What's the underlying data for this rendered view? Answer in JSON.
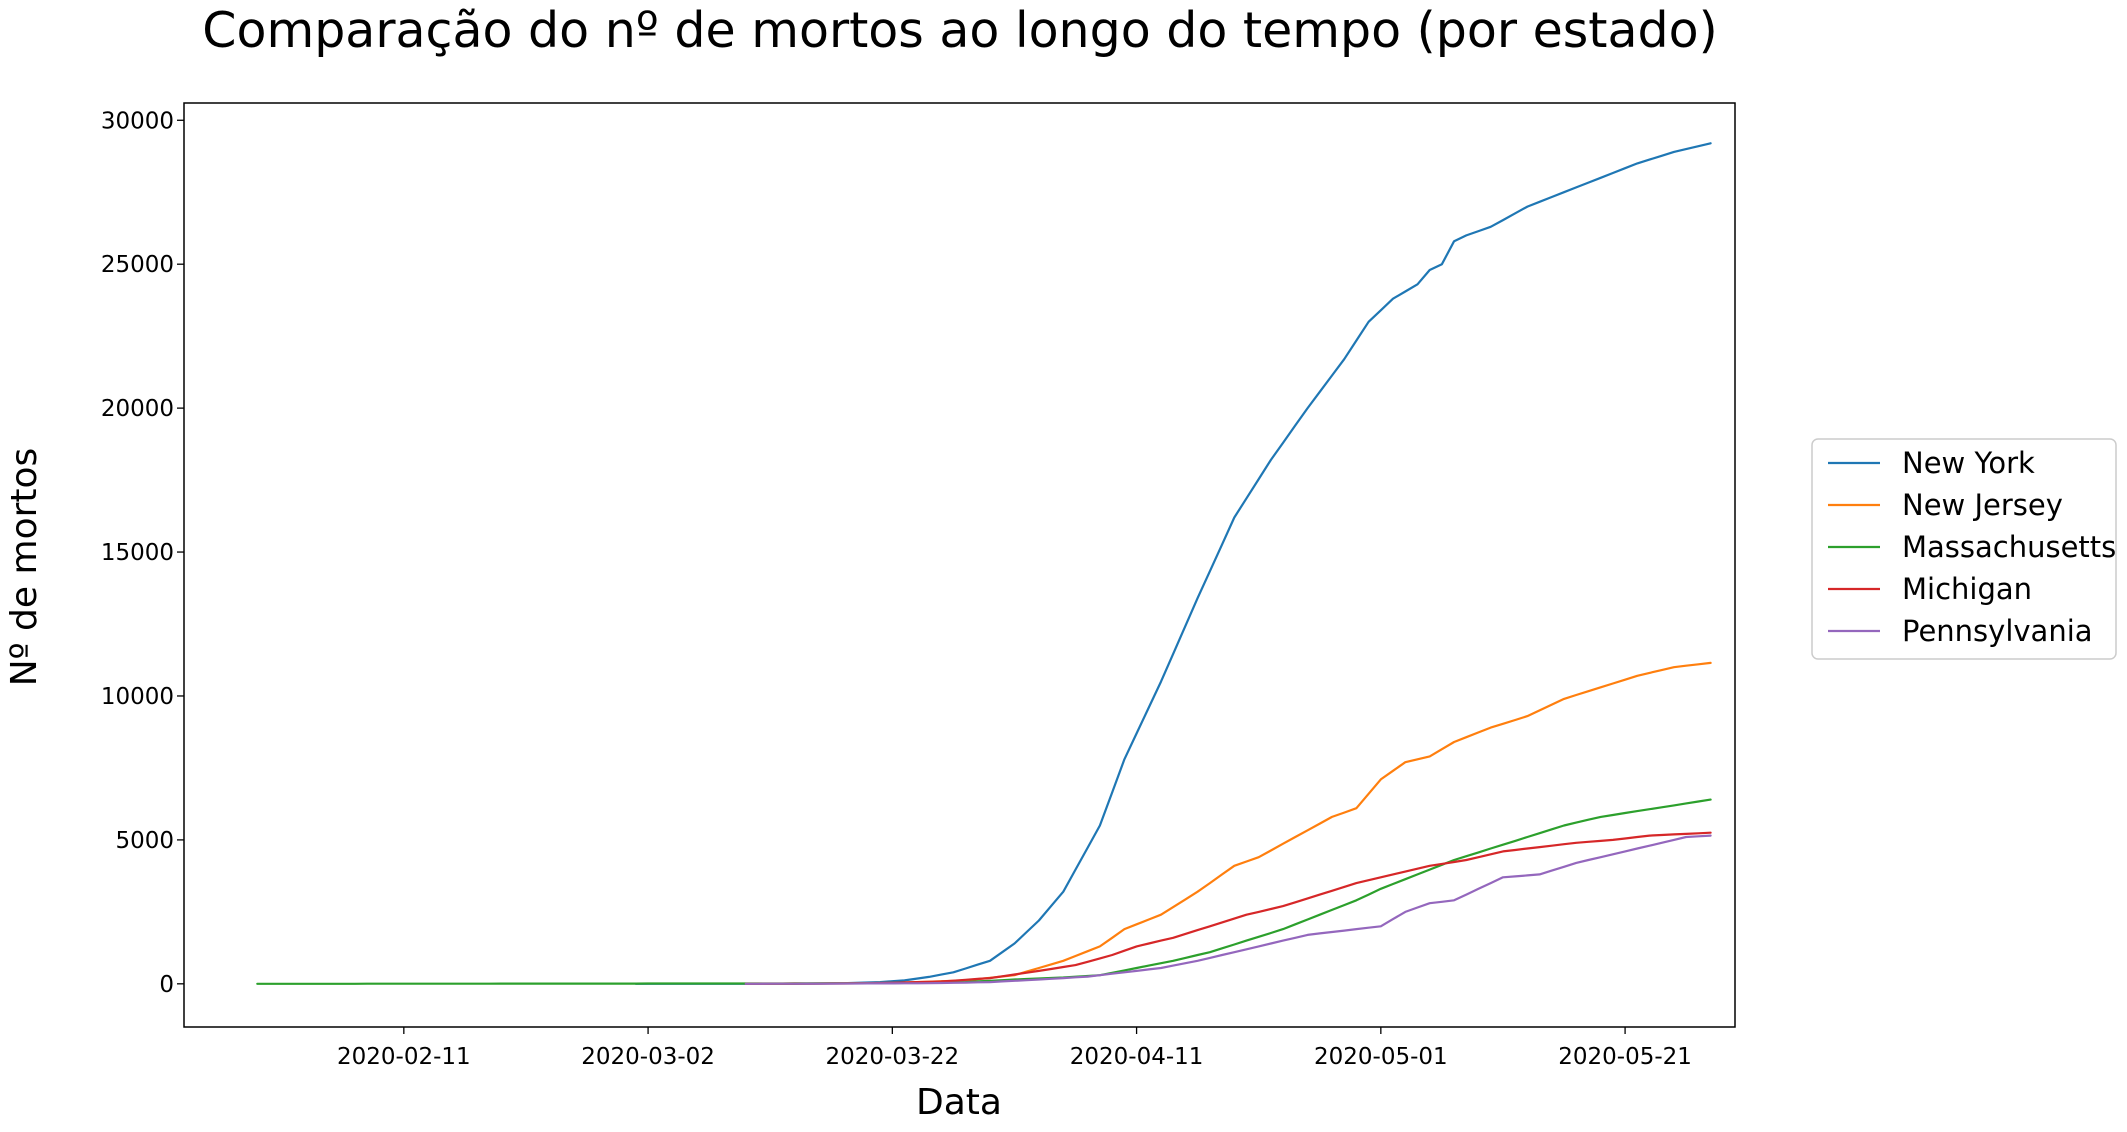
{
  "chart_data": {
    "type": "line",
    "title": "Comparação do nº de mortos ao longo do tempo (por estado)",
    "xlabel": "Data",
    "ylabel": "Nº de mortos",
    "x_type": "date",
    "xlim": [
      "2020-01-24",
      "2020-05-30"
    ],
    "ylim": [
      -1500,
      30600
    ],
    "x_ticks": [
      "2020-02-11",
      "2020-03-02",
      "2020-03-22",
      "2020-04-11",
      "2020-05-01",
      "2020-05-21"
    ],
    "y_ticks": [
      0,
      5000,
      10000,
      15000,
      20000,
      25000,
      30000
    ],
    "grid": false,
    "legend_position": "outside-right",
    "series": [
      {
        "name": "New York",
        "color": "#1f77b4",
        "points": [
          [
            "2020-03-01",
            0
          ],
          [
            "2020-03-14",
            2
          ],
          [
            "2020-03-18",
            20
          ],
          [
            "2020-03-21",
            60
          ],
          [
            "2020-03-23",
            120
          ],
          [
            "2020-03-25",
            240
          ],
          [
            "2020-03-27",
            400
          ],
          [
            "2020-03-30",
            800
          ],
          [
            "2020-04-01",
            1400
          ],
          [
            "2020-04-03",
            2200
          ],
          [
            "2020-04-05",
            3200
          ],
          [
            "2020-04-08",
            5500
          ],
          [
            "2020-04-10",
            7800
          ],
          [
            "2020-04-13",
            10500
          ],
          [
            "2020-04-16",
            13400
          ],
          [
            "2020-04-19",
            16200
          ],
          [
            "2020-04-22",
            18200
          ],
          [
            "2020-04-25",
            20000
          ],
          [
            "2020-04-28",
            21700
          ],
          [
            "2020-04-30",
            23000
          ],
          [
            "2020-05-02",
            23800
          ],
          [
            "2020-05-04",
            24300
          ],
          [
            "2020-05-05",
            24800
          ],
          [
            "2020-05-06",
            25000
          ],
          [
            "2020-05-07",
            25800
          ],
          [
            "2020-05-08",
            26000
          ],
          [
            "2020-05-10",
            26300
          ],
          [
            "2020-05-13",
            27000
          ],
          [
            "2020-05-16",
            27500
          ],
          [
            "2020-05-19",
            28000
          ],
          [
            "2020-05-22",
            28500
          ],
          [
            "2020-05-25",
            28900
          ],
          [
            "2020-05-28",
            29200
          ]
        ]
      },
      {
        "name": "New Jersey",
        "color": "#ff7f0e",
        "points": [
          [
            "2020-03-10",
            0
          ],
          [
            "2020-03-22",
            30
          ],
          [
            "2020-03-28",
            120
          ],
          [
            "2020-04-01",
            300
          ],
          [
            "2020-04-05",
            800
          ],
          [
            "2020-04-08",
            1300
          ],
          [
            "2020-04-10",
            1900
          ],
          [
            "2020-04-13",
            2400
          ],
          [
            "2020-04-16",
            3200
          ],
          [
            "2020-04-19",
            4100
          ],
          [
            "2020-04-21",
            4400
          ],
          [
            "2020-04-24",
            5100
          ],
          [
            "2020-04-27",
            5800
          ],
          [
            "2020-04-29",
            6100
          ],
          [
            "2020-05-01",
            7100
          ],
          [
            "2020-05-03",
            7700
          ],
          [
            "2020-05-05",
            7900
          ],
          [
            "2020-05-07",
            8400
          ],
          [
            "2020-05-10",
            8900
          ],
          [
            "2020-05-13",
            9300
          ],
          [
            "2020-05-16",
            9900
          ],
          [
            "2020-05-19",
            10300
          ],
          [
            "2020-05-22",
            10700
          ],
          [
            "2020-05-25",
            11000
          ],
          [
            "2020-05-28",
            11150
          ]
        ]
      },
      {
        "name": "Massachusetts",
        "color": "#2ca02c",
        "points": [
          [
            "2020-01-30",
            0
          ],
          [
            "2020-03-20",
            15
          ],
          [
            "2020-03-28",
            60
          ],
          [
            "2020-04-01",
            150
          ],
          [
            "2020-04-05",
            220
          ],
          [
            "2020-04-08",
            300
          ],
          [
            "2020-04-11",
            550
          ],
          [
            "2020-04-14",
            800
          ],
          [
            "2020-04-17",
            1100
          ],
          [
            "2020-04-20",
            1500
          ],
          [
            "2020-04-23",
            1900
          ],
          [
            "2020-04-26",
            2400
          ],
          [
            "2020-04-29",
            2900
          ],
          [
            "2020-05-01",
            3300
          ],
          [
            "2020-05-04",
            3800
          ],
          [
            "2020-05-07",
            4300
          ],
          [
            "2020-05-10",
            4700
          ],
          [
            "2020-05-13",
            5100
          ],
          [
            "2020-05-16",
            5500
          ],
          [
            "2020-05-19",
            5800
          ],
          [
            "2020-05-22",
            6000
          ],
          [
            "2020-05-25",
            6200
          ],
          [
            "2020-05-28",
            6400
          ]
        ]
      },
      {
        "name": "Michigan",
        "color": "#d62728",
        "points": [
          [
            "2020-03-10",
            0
          ],
          [
            "2020-03-20",
            15
          ],
          [
            "2020-03-26",
            80
          ],
          [
            "2020-03-30",
            200
          ],
          [
            "2020-04-03",
            450
          ],
          [
            "2020-04-06",
            650
          ],
          [
            "2020-04-09",
            1000
          ],
          [
            "2020-04-11",
            1300
          ],
          [
            "2020-04-14",
            1600
          ],
          [
            "2020-04-17",
            2000
          ],
          [
            "2020-04-20",
            2400
          ],
          [
            "2020-04-23",
            2700
          ],
          [
            "2020-04-26",
            3100
          ],
          [
            "2020-04-29",
            3500
          ],
          [
            "2020-05-02",
            3800
          ],
          [
            "2020-05-05",
            4100
          ],
          [
            "2020-05-08",
            4300
          ],
          [
            "2020-05-11",
            4600
          ],
          [
            "2020-05-14",
            4750
          ],
          [
            "2020-05-17",
            4900
          ],
          [
            "2020-05-20",
            5000
          ],
          [
            "2020-05-23",
            5150
          ],
          [
            "2020-05-28",
            5250
          ]
        ]
      },
      {
        "name": "Pennsylvania",
        "color": "#9467bd",
        "points": [
          [
            "2020-03-10",
            0
          ],
          [
            "2020-03-25",
            20
          ],
          [
            "2020-03-30",
            60
          ],
          [
            "2020-04-03",
            150
          ],
          [
            "2020-04-07",
            250
          ],
          [
            "2020-04-10",
            400
          ],
          [
            "2020-04-13",
            550
          ],
          [
            "2020-04-16",
            800
          ],
          [
            "2020-04-19",
            1100
          ],
          [
            "2020-04-22",
            1400
          ],
          [
            "2020-04-25",
            1700
          ],
          [
            "2020-04-28",
            1850
          ],
          [
            "2020-05-01",
            2000
          ],
          [
            "2020-05-03",
            2500
          ],
          [
            "2020-05-05",
            2800
          ],
          [
            "2020-05-07",
            2900
          ],
          [
            "2020-05-09",
            3300
          ],
          [
            "2020-05-11",
            3700
          ],
          [
            "2020-05-14",
            3800
          ],
          [
            "2020-05-17",
            4200
          ],
          [
            "2020-05-20",
            4500
          ],
          [
            "2020-05-23",
            4800
          ],
          [
            "2020-05-26",
            5100
          ],
          [
            "2020-05-28",
            5150
          ]
        ]
      }
    ]
  }
}
